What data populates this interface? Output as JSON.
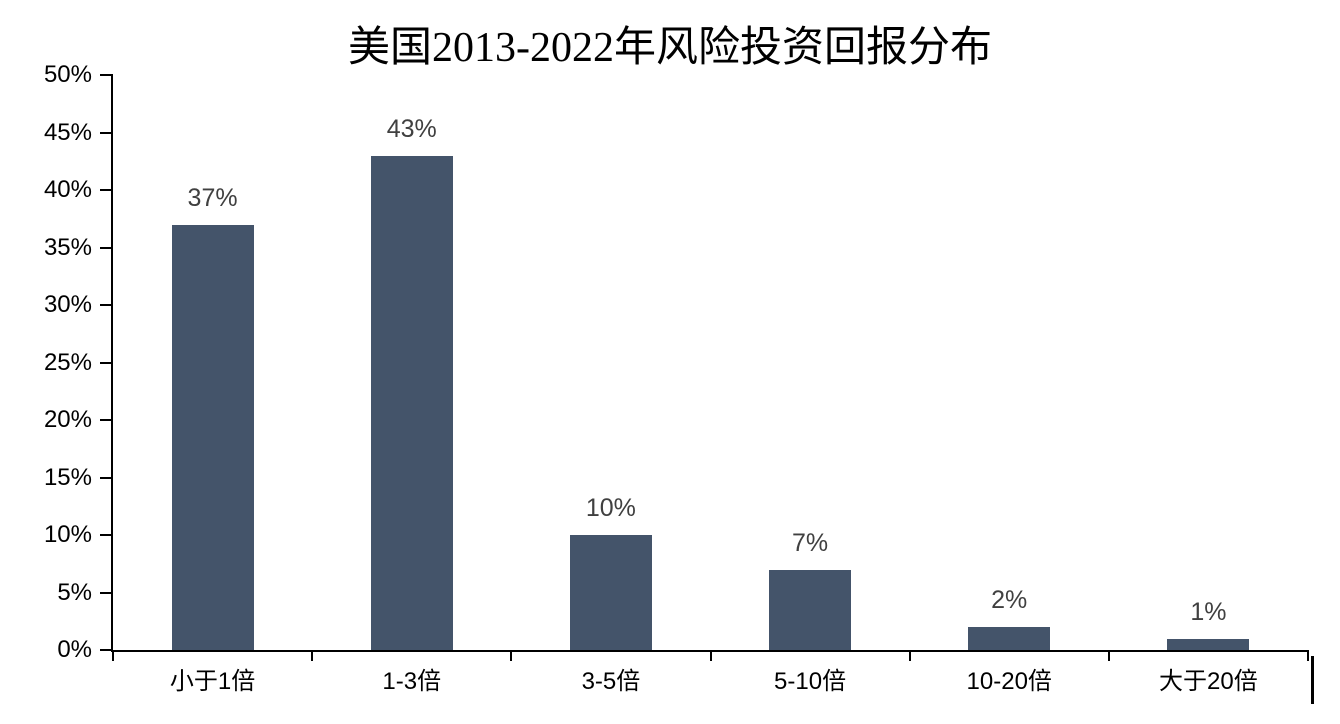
{
  "chart_data": {
    "type": "bar",
    "title": "美国2013-2022年风险投资回报分布",
    "categories": [
      "小于1倍",
      "1-3倍",
      "3-5倍",
      "5-10倍",
      "10-20倍",
      "大于20倍"
    ],
    "values": [
      37,
      43,
      10,
      7,
      2,
      1
    ],
    "data_labels": [
      "37%",
      "43%",
      "10%",
      "7%",
      "2%",
      "1%"
    ],
    "y_ticks": [
      "0%",
      "5%",
      "10%",
      "15%",
      "20%",
      "25%",
      "30%",
      "35%",
      "40%",
      "45%",
      "50%"
    ],
    "xlabel": "",
    "ylabel": "",
    "ylim": [
      0,
      50
    ],
    "grid": false,
    "legend": "none",
    "colors": {
      "bar": "#44546A",
      "data_label": "#404040",
      "axis": "#000000",
      "axis_label": "#000000",
      "background": "#ffffff"
    }
  }
}
